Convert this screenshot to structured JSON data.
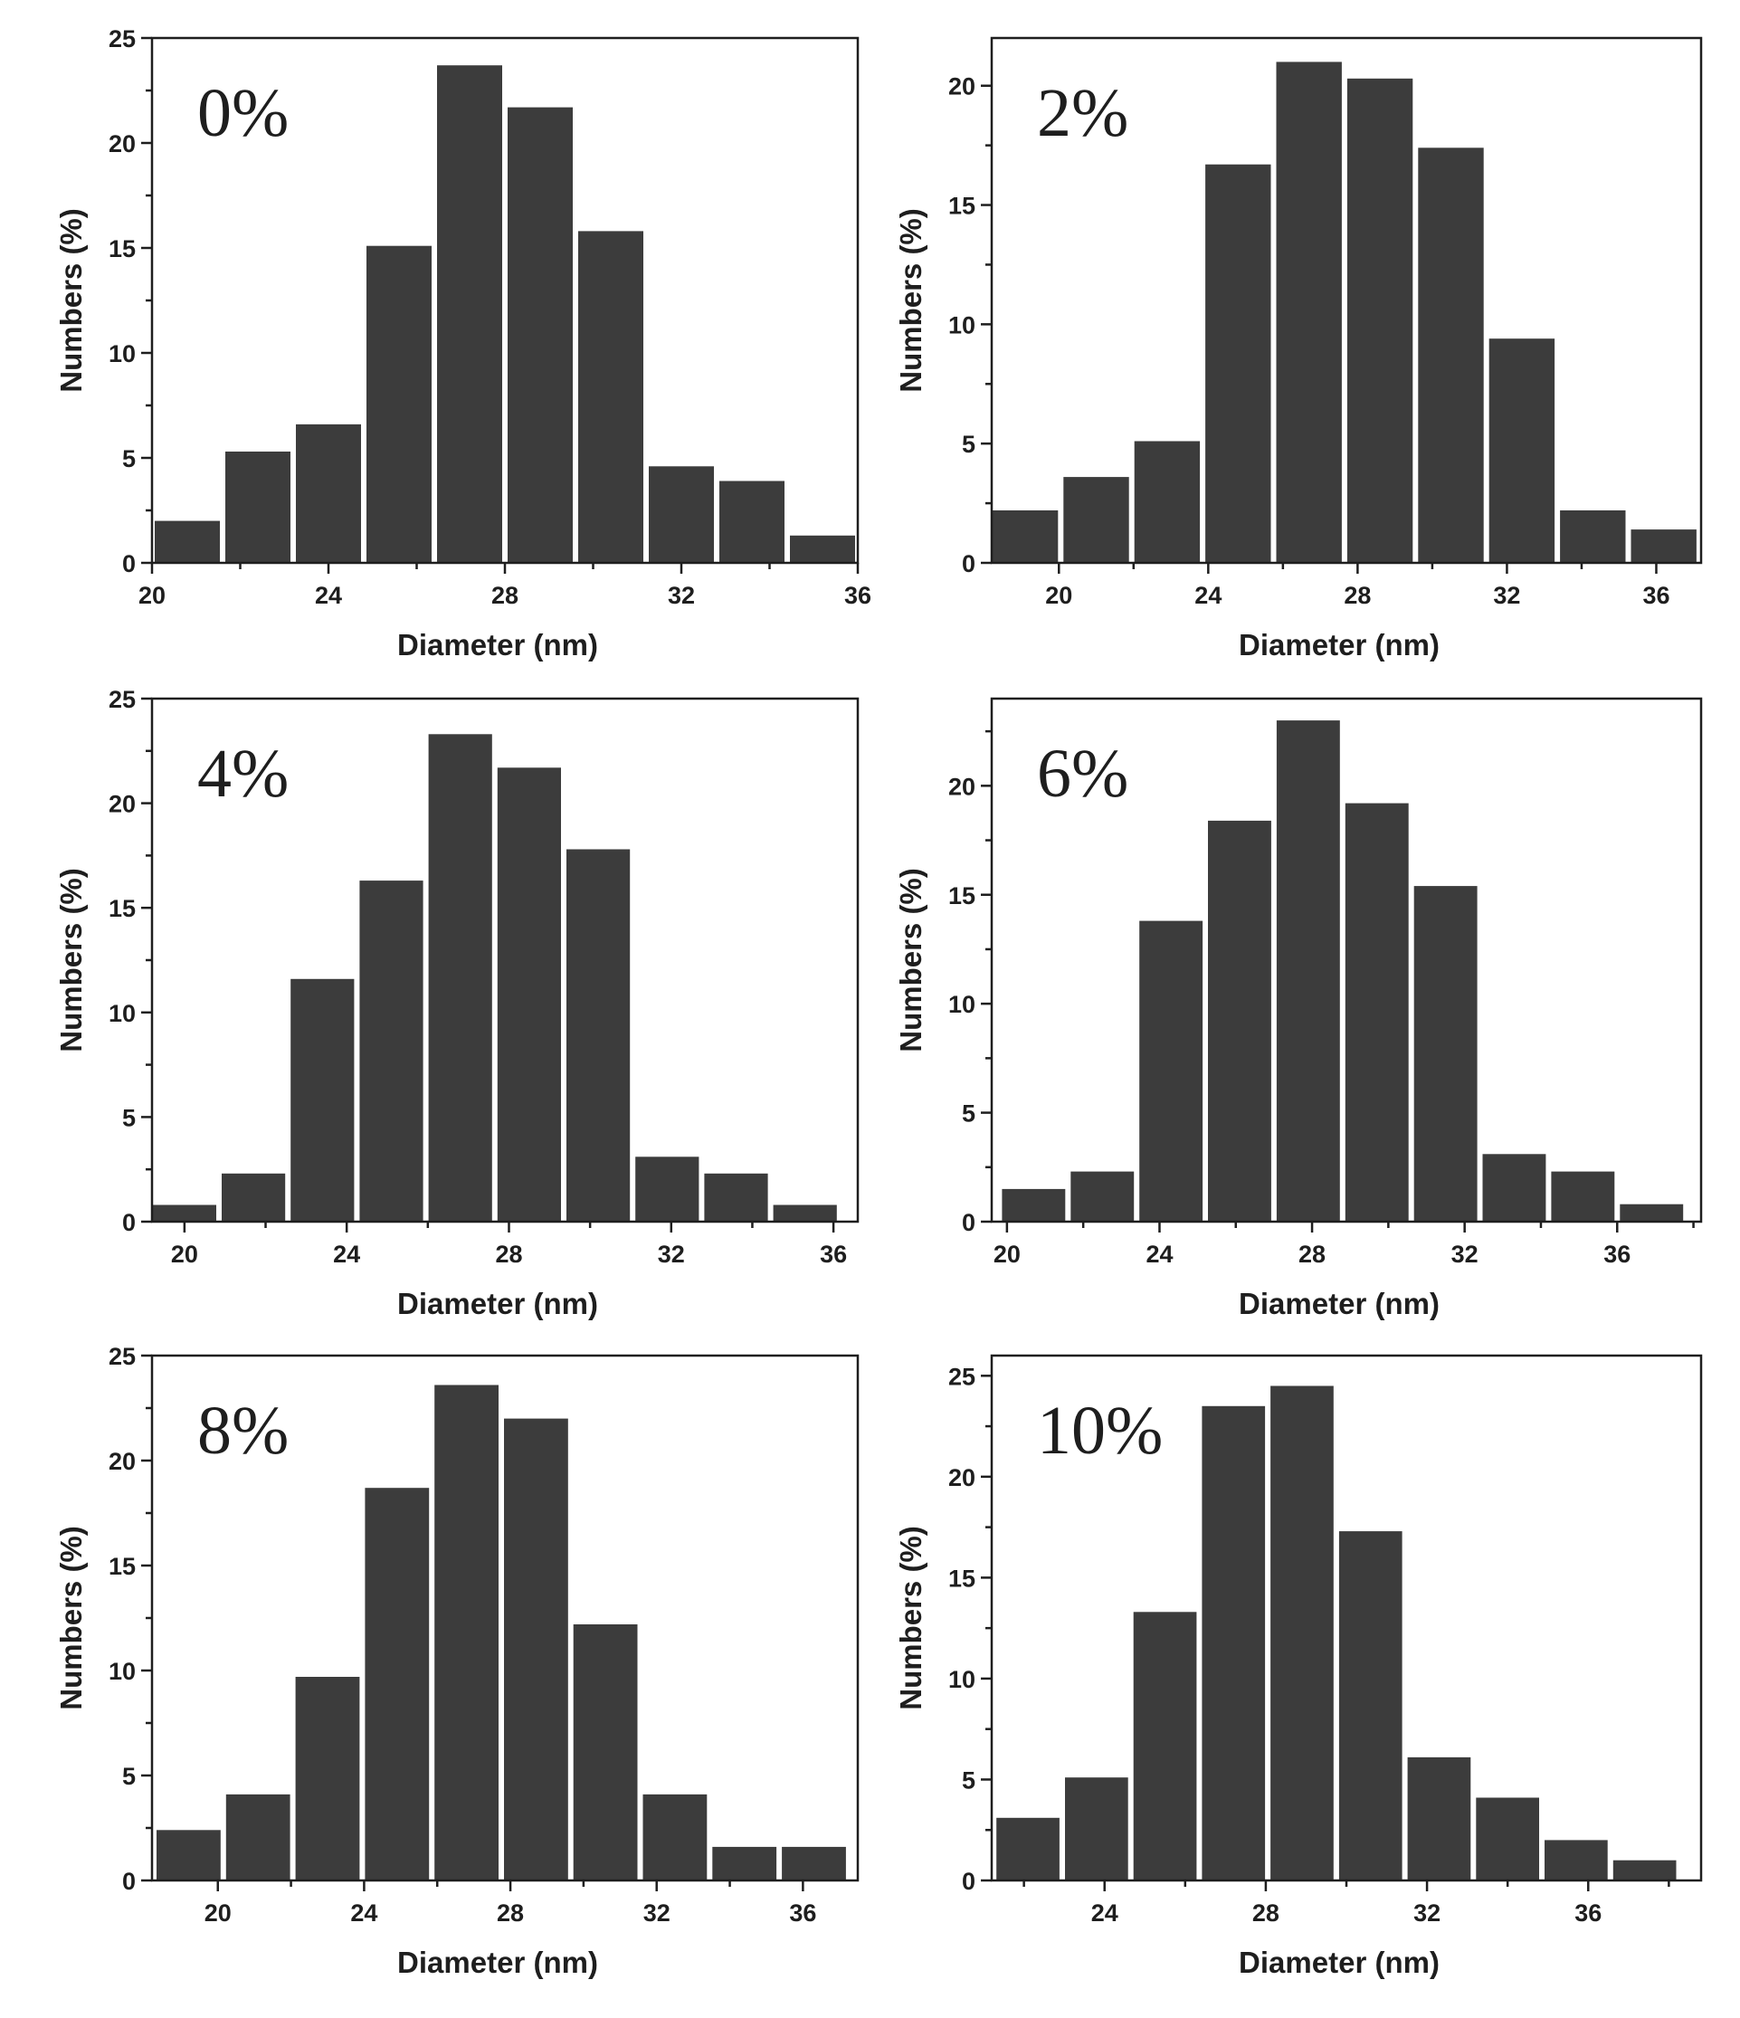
{
  "figure": {
    "bar_color": "#3c3c3c",
    "axis_color": "#1e1e1e",
    "background": "#ffffff"
  },
  "chart_data": [
    {
      "type": "bar",
      "panel_label": "0%",
      "xlabel": "Diameter (nm)",
      "ylabel": "Numbers (%)",
      "xlim": [
        20,
        36
      ],
      "ylim": [
        0,
        25
      ],
      "xticks": [
        20,
        24,
        28,
        32,
        36
      ],
      "yticks": [
        0,
        5,
        10,
        15,
        20,
        25
      ],
      "bin_width": 1.6,
      "x": [
        20.8,
        22.4,
        24.0,
        25.6,
        27.2,
        28.8,
        30.4,
        32.0,
        33.6,
        35.2
      ],
      "values": [
        2.0,
        5.3,
        6.6,
        15.1,
        23.7,
        21.7,
        15.8,
        4.6,
        3.9,
        1.3
      ]
    },
    {
      "type": "bar",
      "panel_label": "2%",
      "xlabel": "Diameter (nm)",
      "ylabel": "Numbers (%)",
      "xlim": [
        18.2,
        37.2
      ],
      "ylim": [
        0,
        22
      ],
      "xticks": [
        20,
        24,
        28,
        32,
        36
      ],
      "yticks": [
        0,
        5,
        10,
        15,
        20
      ],
      "bin_width": 1.9,
      "x": [
        19.1,
        21.0,
        22.9,
        24.8,
        26.7,
        28.6,
        30.5,
        32.4,
        34.3,
        36.2
      ],
      "values": [
        2.2,
        3.6,
        5.1,
        16.7,
        21.0,
        20.3,
        17.4,
        9.4,
        2.2,
        1.4
      ]
    },
    {
      "type": "bar",
      "panel_label": "4%",
      "xlabel": "Diameter (nm)",
      "ylabel": "Numbers (%)",
      "xlim": [
        19.2,
        36.6
      ],
      "ylim": [
        0,
        25
      ],
      "xticks": [
        20,
        24,
        28,
        32,
        36
      ],
      "yticks": [
        0,
        5,
        10,
        15,
        20,
        25
      ],
      "bin_width": 1.7,
      "x": [
        20.0,
        21.7,
        23.4,
        25.1,
        26.8,
        28.5,
        30.2,
        31.9,
        33.6,
        35.3
      ],
      "values": [
        0.8,
        2.3,
        11.6,
        16.3,
        23.3,
        21.7,
        17.8,
        3.1,
        2.3,
        0.8
      ]
    },
    {
      "type": "bar",
      "panel_label": "6%",
      "xlabel": "Diameter (nm)",
      "ylabel": "Numbers (%)",
      "xlim": [
        19.6,
        38.2
      ],
      "ylim": [
        0,
        24
      ],
      "xticks": [
        20,
        24,
        28,
        32,
        36
      ],
      "yticks": [
        0,
        5,
        10,
        15,
        20
      ],
      "bin_width": 1.8,
      "x": [
        20.7,
        22.5,
        24.3,
        26.1,
        27.9,
        29.7,
        31.5,
        33.3,
        35.1,
        36.9
      ],
      "values": [
        1.5,
        2.3,
        13.8,
        18.4,
        23.0,
        19.2,
        15.4,
        3.1,
        2.3,
        0.8
      ]
    },
    {
      "type": "bar",
      "panel_label": "8%",
      "xlabel": "Diameter (nm)",
      "ylabel": "Numbers (%)",
      "xlim": [
        18.2,
        37.5
      ],
      "ylim": [
        0,
        25
      ],
      "xticks": [
        20,
        24,
        28,
        32,
        36
      ],
      "yticks": [
        0,
        5,
        10,
        15,
        20,
        25
      ],
      "bin_width": 1.9,
      "x": [
        19.2,
        21.1,
        23.0,
        24.9,
        26.8,
        28.7,
        30.6,
        32.5,
        34.4,
        36.3
      ],
      "values": [
        2.4,
        4.1,
        9.7,
        18.7,
        23.6,
        22.0,
        12.2,
        4.1,
        1.6,
        1.6
      ]
    },
    {
      "type": "bar",
      "panel_label": "10%",
      "xlabel": "Diameter (nm)",
      "ylabel": "Numbers (%)",
      "xlim": [
        21.2,
        38.8
      ],
      "ylim": [
        0,
        26
      ],
      "xticks": [
        24,
        28,
        32,
        36
      ],
      "yticks": [
        0,
        5,
        10,
        15,
        20,
        25
      ],
      "bin_width": 1.7,
      "x": [
        22.1,
        23.8,
        25.5,
        27.2,
        28.9,
        30.6,
        32.3,
        34.0,
        35.7,
        37.4
      ],
      "values": [
        3.1,
        5.1,
        13.3,
        23.5,
        24.5,
        17.3,
        6.1,
        4.1,
        2.0,
        1.0
      ]
    }
  ]
}
